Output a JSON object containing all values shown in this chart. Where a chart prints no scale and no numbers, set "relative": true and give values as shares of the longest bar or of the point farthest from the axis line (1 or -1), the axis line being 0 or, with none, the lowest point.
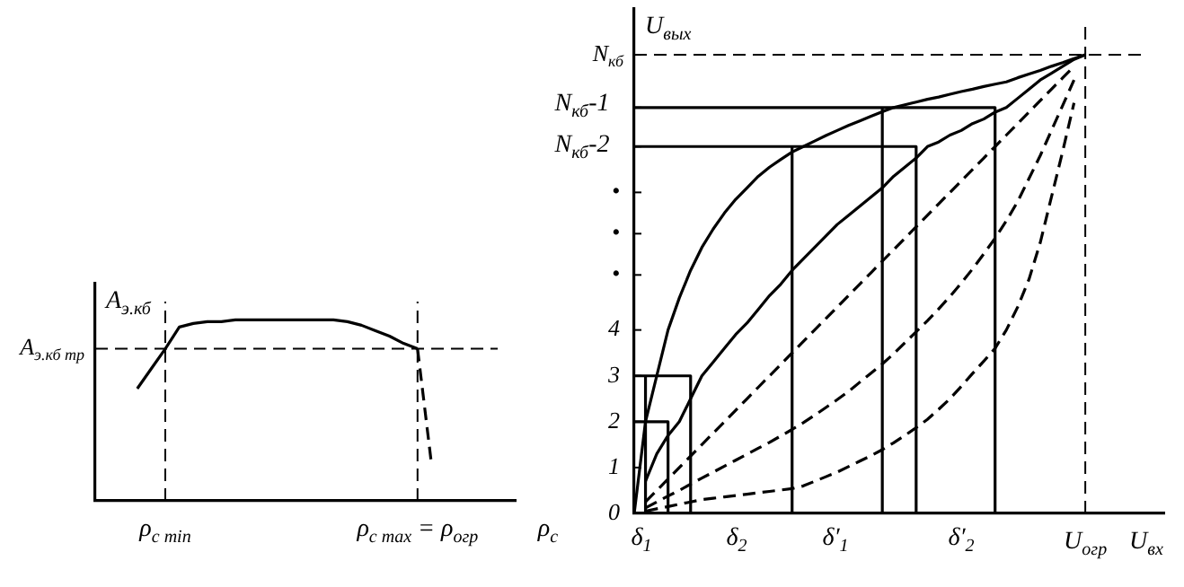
{
  "chart_data": [
    {
      "type": "line",
      "relative": true,
      "xlabel": "ρ$_{c}$",
      "ylabel": "A$_{э.кб}$",
      "categories": [
        null,
        null,
        null,
        null,
        null,
        "ρ$_{c min}$",
        null,
        null,
        null,
        null,
        null,
        null,
        null,
        null,
        null,
        null,
        null,
        null,
        null,
        null,
        null,
        null,
        null,
        "ρ$_{c max}$ = ρ$_{огр}$",
        null,
        null,
        null,
        null,
        null,
        null,
        null
      ],
      "series": [
        {
          "color": "#000000",
          "line_style": "solid",
          "values": [
            null,
            null,
            null,
            0.62,
            0.73,
            0.84,
            0.96,
            0.98,
            0.99,
            0.99,
            1,
            1,
            1,
            1,
            1,
            1,
            1,
            1,
            0.99,
            0.97,
            0.94,
            0.91,
            0.87,
            0.84,
            null,
            null,
            null,
            null,
            null,
            null,
            null
          ]
        },
        {
          "color": "#000000",
          "line_style": "dashed",
          "values": [
            null,
            null,
            null,
            null,
            null,
            null,
            null,
            null,
            null,
            null,
            null,
            null,
            null,
            null,
            null,
            null,
            null,
            null,
            null,
            null,
            null,
            null,
            null,
            0.84,
            0.2,
            null,
            null,
            null,
            null,
            null,
            null
          ]
        }
      ],
      "ref_lines": [
        {
          "axis": "y",
          "value": 0.84,
          "label": "A$_{э.кб тр}$",
          "line_style": "dashed"
        },
        {
          "axis": "x",
          "value": "ρ$_{c min}$",
          "line_style": "dashed"
        },
        {
          "axis": "x",
          "value": "ρ$_{c max}$ = ρ$_{огр}$",
          "line_style": "dashed"
        }
      ],
      "grid": false,
      "legend": false,
      "marker": "none"
    },
    {
      "type": "line",
      "xlabel": "U$_{вх}$",
      "ylabel": "U$_{вых}$",
      "ylim": [
        0,
        11
      ],
      "categories": [
        null,
        null,
        null,
        null,
        null,
        null,
        null,
        null,
        null,
        null,
        null,
        null,
        null,
        null,
        null,
        null,
        null,
        null,
        null,
        null,
        null,
        null,
        null,
        null,
        null,
        null,
        null,
        null,
        null,
        null,
        null,
        null,
        null,
        null,
        null,
        null,
        null,
        null,
        null,
        null,
        "U$_{огр}$",
        null,
        null,
        null,
        null,
        null,
        null,
        null
      ],
      "yticks": [
        0,
        1,
        2,
        3,
        4,
        {
          "value": 5.2,
          "label": "•"
        },
        {
          "value": 6.1,
          "label": "•"
        },
        {
          "value": 7,
          "label": "•"
        },
        {
          "value": 8,
          "label": null
        },
        {
          "value": 8.85,
          "label": null
        },
        {
          "value": 10,
          "label": null
        }
      ],
      "series": [
        {
          "color": "#000000",
          "line_style": "solid",
          "values": [
            0,
            2.0,
            3.0,
            4.0,
            4.7,
            5.3,
            5.8,
            6.2,
            6.55,
            6.85,
            7.1,
            7.35,
            7.55,
            7.72,
            7.88,
            8.0,
            8.12,
            8.24,
            8.35,
            8.46,
            8.56,
            8.66,
            8.76,
            8.85,
            8.91,
            8.97,
            9.03,
            9.08,
            9.14,
            9.2,
            9.25,
            9.31,
            9.36,
            9.41,
            9.5,
            9.58,
            9.66,
            9.75,
            9.83,
            9.92,
            10,
            null,
            null,
            null,
            null,
            null,
            null,
            null
          ]
        },
        {
          "color": "#000000",
          "line_style": "solid",
          "values": [
            null,
            0.7,
            1.3,
            1.7,
            2.0,
            2.5,
            3.0,
            3.3,
            3.6,
            3.9,
            4.15,
            4.45,
            4.75,
            5.0,
            5.3,
            5.55,
            5.8,
            6.05,
            6.3,
            6.5,
            6.7,
            6.9,
            7.1,
            7.35,
            7.55,
            7.75,
            8.0,
            8.1,
            8.25,
            8.35,
            8.5,
            8.6,
            8.75,
            8.85,
            9.05,
            9.25,
            9.45,
            9.6,
            9.75,
            9.9,
            10,
            null,
            null,
            null,
            null,
            null,
            null,
            null
          ]
        },
        {
          "color": "#000000",
          "line_style": "dashed",
          "values": [
            null,
            0.25,
            0.5,
            0.75,
            1,
            1.25,
            1.5,
            1.75,
            2,
            2.25,
            2.5,
            2.75,
            3,
            3.25,
            3.5,
            3.75,
            4,
            4.25,
            4.5,
            4.75,
            5,
            5.25,
            5.5,
            5.75,
            6,
            6.25,
            6.5,
            6.75,
            7,
            7.25,
            7.5,
            7.75,
            8,
            8.25,
            8.5,
            8.75,
            9,
            9.25,
            9.5,
            9.75,
            null,
            null,
            null,
            null,
            null,
            null,
            null,
            null
          ]
        },
        {
          "color": "#000000",
          "line_style": "dashed",
          "values": [
            null,
            0.12,
            0.25,
            0.38,
            0.5,
            0.64,
            0.77,
            0.9,
            1.03,
            1.16,
            1.29,
            1.42,
            1.55,
            1.69,
            1.83,
            1.98,
            2.14,
            2.31,
            2.48,
            2.66,
            2.86,
            3.06,
            3.26,
            3.48,
            3.72,
            3.96,
            4.2,
            4.46,
            4.73,
            5.02,
            5.33,
            5.66,
            6.0,
            6.38,
            6.8,
            7.3,
            7.8,
            8.35,
            8.9,
            9.45,
            null,
            null,
            null,
            null,
            null,
            null,
            null,
            null
          ]
        },
        {
          "color": "#000000",
          "line_style": "dashed",
          "values": [
            null,
            0.05,
            0.1,
            0.15,
            0.2,
            0.25,
            0.3,
            0.33,
            0.36,
            0.39,
            0.42,
            0.45,
            0.48,
            0.51,
            0.54,
            0.6,
            0.7,
            0.8,
            0.9,
            1.02,
            1.14,
            1.26,
            1.39,
            1.54,
            1.7,
            1.87,
            2.05,
            2.27,
            2.5,
            2.77,
            3.05,
            3.32,
            3.6,
            4.0,
            4.5,
            5.1,
            5.9,
            6.9,
            7.9,
            8.95,
            null,
            null,
            null,
            null,
            null,
            null,
            null,
            null
          ]
        },
        {
          "type": "step",
          "color": "#000000",
          "line_style": "solid",
          "values": [
            8,
            8,
            8,
            8,
            8,
            8,
            8,
            8,
            8,
            8,
            8,
            8,
            8,
            8,
            8,
            8,
            8,
            8,
            8,
            8,
            8,
            8,
            8,
            8,
            8,
            8,
            0,
            null,
            null,
            null,
            null,
            null,
            null,
            null,
            null,
            null,
            null,
            null,
            null,
            null,
            null,
            null,
            null,
            null,
            null,
            null,
            null,
            null
          ]
        },
        {
          "type": "step",
          "color": "#000000",
          "line_style": "solid",
          "values": [
            null,
            null,
            null,
            null,
            null,
            null,
            null,
            null,
            null,
            null,
            null,
            null,
            null,
            null,
            8,
            0,
            null,
            null,
            null,
            null,
            null,
            null,
            null,
            null,
            null,
            null,
            null,
            null,
            null,
            null,
            null,
            null,
            null,
            null,
            null,
            null,
            null,
            null,
            null,
            null,
            null,
            null,
            null,
            null,
            null,
            null,
            null,
            null
          ]
        },
        {
          "type": "step",
          "color": "#000000",
          "line_style": "solid",
          "values": [
            8.85,
            8.85,
            8.85,
            8.85,
            8.85,
            8.85,
            8.85,
            8.85,
            8.85,
            8.85,
            8.85,
            8.85,
            8.85,
            8.85,
            8.85,
            8.85,
            8.85,
            8.85,
            8.85,
            8.85,
            8.85,
            8.85,
            8.85,
            8.85,
            8.85,
            8.85,
            8.85,
            8.85,
            8.85,
            8.85,
            8.85,
            8.85,
            8.85,
            0,
            null,
            null,
            null,
            null,
            null,
            null,
            null,
            null,
            null,
            null,
            null,
            null,
            null,
            null
          ]
        },
        {
          "type": "step",
          "color": "#000000",
          "line_style": "solid",
          "values": [
            null,
            null,
            null,
            null,
            null,
            null,
            null,
            null,
            null,
            null,
            null,
            null,
            null,
            null,
            null,
            null,
            null,
            null,
            null,
            null,
            null,
            null,
            8.85,
            0,
            null,
            null,
            null,
            null,
            null,
            null,
            null,
            null,
            null,
            null,
            null,
            null,
            null,
            null,
            null,
            null,
            null,
            null,
            null,
            null,
            null,
            null,
            null,
            null
          ]
        },
        {
          "type": "step",
          "color": "#000000",
          "line_style": "solid",
          "values": [
            3,
            3,
            3,
            3,
            3,
            3,
            0,
            null,
            null,
            null,
            null,
            null,
            null,
            null,
            null,
            null,
            null,
            null,
            null,
            null,
            null,
            null,
            null,
            null,
            null,
            null,
            null,
            null,
            null,
            null,
            null,
            null,
            null,
            null,
            null,
            null,
            null,
            null,
            null,
            null,
            null,
            null,
            null,
            null,
            null,
            null,
            null,
            null
          ]
        },
        {
          "type": "step",
          "color": "#000000",
          "line_style": "solid",
          "values": [
            null,
            3,
            0,
            null,
            null,
            null,
            null,
            null,
            null,
            null,
            null,
            null,
            null,
            null,
            null,
            null,
            null,
            null,
            null,
            null,
            null,
            null,
            null,
            null,
            null,
            null,
            null,
            null,
            null,
            null,
            null,
            null,
            null,
            null,
            null,
            null,
            null,
            null,
            null,
            null,
            null,
            null,
            null,
            null,
            null,
            null,
            null,
            null
          ]
        },
        {
          "type": "step",
          "color": "#000000",
          "line_style": "solid",
          "values": [
            2,
            2,
            2,
            2,
            0,
            null,
            null,
            null,
            null,
            null,
            null,
            null,
            null,
            null,
            null,
            null,
            null,
            null,
            null,
            null,
            null,
            null,
            null,
            null,
            null,
            null,
            null,
            null,
            null,
            null,
            null,
            null,
            null,
            null,
            null,
            null,
            null,
            null,
            null,
            null,
            null,
            null,
            null,
            null,
            null,
            null,
            null,
            null
          ]
        }
      ],
      "ref_lines": [
        {
          "axis": "y",
          "value": 10,
          "label": "N$_{кб}$",
          "line_style": "dashed"
        },
        {
          "axis": "x",
          "value": "U$_{огр}$",
          "line_style": "dashed"
        }
      ],
      "annotations": [
        "δ$_{1}$",
        "δ$_{2}$",
        "δ′$_{1}$",
        "δ′$_{2}$",
        "N$_{кб}$-2",
        "N$_{кб}$-1"
      ],
      "grid": false,
      "legend": false,
      "marker": "none"
    }
  ]
}
